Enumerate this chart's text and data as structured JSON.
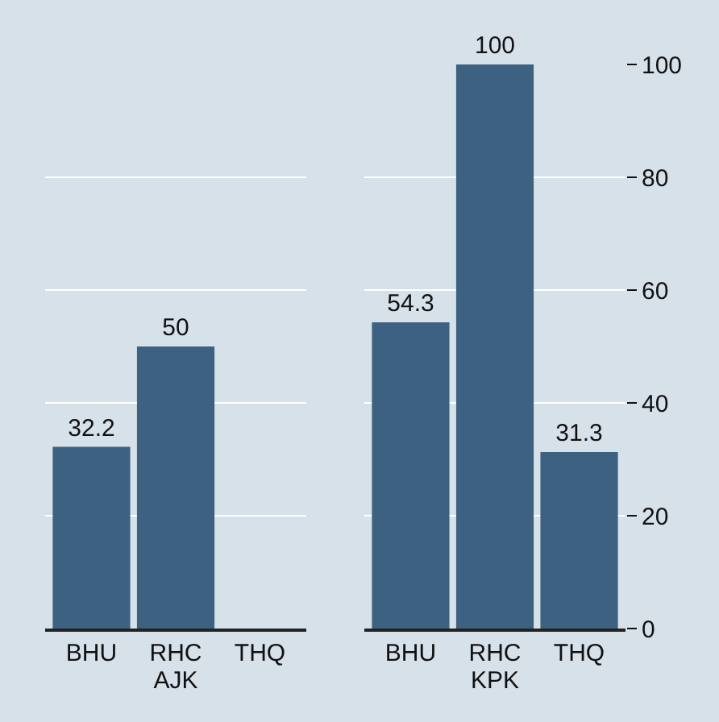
{
  "chart_data": [
    {
      "type": "bar",
      "xlabel": "AJK",
      "categories": [
        "BHU",
        "RHC",
        "THQ"
      ],
      "values": [
        32.2,
        50,
        null
      ],
      "color": "#3d6180",
      "ylim": [
        0,
        100
      ],
      "yticks": [
        0,
        20,
        40,
        60,
        80,
        100
      ],
      "grid": "y",
      "data_labels": true,
      "tick_labels": "x"
    },
    {
      "type": "bar",
      "xlabel": "KPK",
      "categories": [
        "BHU",
        "RHC",
        "THQ"
      ],
      "values": [
        54.3,
        100,
        31.3
      ],
      "color": "#3d6180",
      "ylim": [
        0,
        100
      ],
      "yticks": [
        0,
        20,
        40,
        60,
        80,
        100
      ],
      "grid": "y",
      "data_labels": true
    }
  ]
}
